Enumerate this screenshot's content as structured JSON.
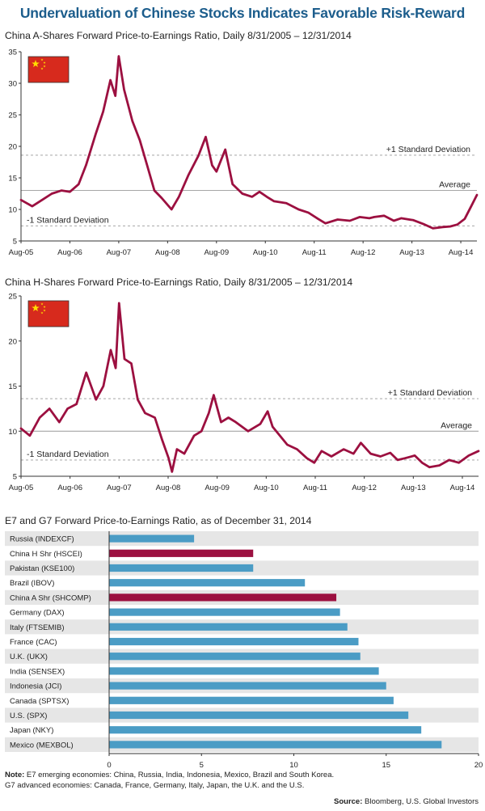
{
  "header": {
    "title": "Undervaluation of Chinese Stocks Indicates Favorable Risk-Reward"
  },
  "chart_data": [
    {
      "type": "line",
      "title": "China A-Shares Forward Price-to-Earnings Ratio, Daily 8/31/2005 – 12/31/2014",
      "xlabel": "",
      "ylabel": "",
      "ylim": [
        5,
        35
      ],
      "yticks": [
        "5",
        "10",
        "15",
        "20",
        "25",
        "30",
        "35"
      ],
      "xticks": [
        "Aug-05",
        "Aug-06",
        "Aug-07",
        "Aug-08",
        "Aug-09",
        "Aug-10",
        "Aug-11",
        "Aug-12",
        "Aug-13",
        "Aug-14"
      ],
      "x": [
        2005.67,
        2005.9,
        2006.1,
        2006.3,
        2006.5,
        2006.67,
        2006.85,
        2007.0,
        2007.2,
        2007.35,
        2007.5,
        2007.6,
        2007.67,
        2007.78,
        2007.95,
        2008.1,
        2008.25,
        2008.4,
        2008.55,
        2008.75,
        2008.9,
        2009.1,
        2009.3,
        2009.45,
        2009.58,
        2009.67,
        2009.85,
        2010.0,
        2010.2,
        2010.4,
        2010.55,
        2010.7,
        2010.85,
        2011.1,
        2011.35,
        2011.55,
        2011.75,
        2011.9,
        2012.15,
        2012.4,
        2012.6,
        2012.8,
        2012.9,
        2013.1,
        2013.3,
        2013.45,
        2013.7,
        2013.9,
        2014.1,
        2014.3,
        2014.45,
        2014.6,
        2014.75,
        2014.87,
        2015.0
      ],
      "values": [
        11.5,
        10.5,
        11.5,
        12.5,
        13.0,
        12.8,
        14.0,
        17.0,
        22.0,
        25.5,
        30.5,
        28.0,
        34.3,
        29.0,
        24.0,
        21.0,
        17.0,
        13.0,
        11.8,
        10.0,
        12.0,
        15.5,
        18.5,
        21.5,
        17.0,
        16.0,
        19.5,
        14.0,
        12.5,
        12.0,
        12.8,
        12.0,
        11.3,
        11.0,
        10.0,
        9.5,
        8.5,
        7.8,
        8.4,
        8.2,
        8.8,
        8.6,
        8.8,
        9.0,
        8.2,
        8.6,
        8.3,
        7.7,
        7.0,
        7.2,
        7.3,
        7.6,
        8.5,
        10.3,
        12.3
      ],
      "average": {
        "label": "Average",
        "value": 13.0
      },
      "plus_sd": {
        "label": "+1 Standard Deviation",
        "value": 18.6
      },
      "minus_sd": {
        "label": "-1 Standard Deviation",
        "value": 7.4
      },
      "colors": {
        "line": "#9c1040",
        "reference": "#999999"
      },
      "flag_icon": "china-flag-icon"
    },
    {
      "type": "line",
      "title": "China H-Shares Forward Price-to-Earnings Ratio, Daily 8/31/2005 – 12/31/2014",
      "xlabel": "",
      "ylabel": "",
      "ylim": [
        5,
        25
      ],
      "yticks": [
        "5",
        "10",
        "15",
        "20",
        "25"
      ],
      "xticks": [
        "Aug-05",
        "Aug-06",
        "Aug-07",
        "Aug-08",
        "Aug-09",
        "Aug-10",
        "Aug-11",
        "Aug-12",
        "Aug-13",
        "Aug-14"
      ],
      "x": [
        2005.67,
        2005.85,
        2006.05,
        2006.25,
        2006.45,
        2006.62,
        2006.8,
        2007.0,
        2007.2,
        2007.35,
        2007.5,
        2007.6,
        2007.67,
        2007.78,
        2007.92,
        2008.05,
        2008.2,
        2008.4,
        2008.55,
        2008.68,
        2008.75,
        2008.85,
        2009.0,
        2009.2,
        2009.35,
        2009.5,
        2009.6,
        2009.75,
        2009.9,
        2010.05,
        2010.3,
        2010.55,
        2010.7,
        2010.8,
        2011.1,
        2011.3,
        2011.5,
        2011.65,
        2011.8,
        2012.0,
        2012.25,
        2012.45,
        2012.6,
        2012.8,
        2013.0,
        2013.2,
        2013.35,
        2013.5,
        2013.7,
        2013.85,
        2014.0,
        2014.2,
        2014.4,
        2014.6,
        2014.8,
        2015.0
      ],
      "values": [
        10.3,
        9.5,
        11.5,
        12.5,
        11.0,
        12.5,
        13.0,
        16.5,
        13.5,
        15.0,
        19.0,
        17.0,
        24.2,
        18.0,
        17.5,
        13.5,
        12.0,
        11.5,
        9.0,
        7.0,
        5.5,
        8.0,
        7.5,
        9.5,
        10.0,
        12.0,
        14.0,
        11.0,
        11.5,
        11.0,
        10.0,
        10.8,
        12.2,
        10.5,
        8.5,
        8.0,
        7.0,
        6.5,
        7.8,
        7.2,
        8.0,
        7.5,
        8.7,
        7.5,
        7.2,
        7.6,
        6.8,
        7.0,
        7.3,
        6.5,
        6.0,
        6.2,
        6.8,
        6.5,
        7.3,
        7.8
      ],
      "average": {
        "label": "Average",
        "value": 10.0
      },
      "plus_sd": {
        "label": "+1 Standard Deviation",
        "value": 13.6
      },
      "minus_sd": {
        "label": "-1 Standard Deviation",
        "value": 6.8
      },
      "colors": {
        "line": "#9c1040",
        "reference": "#999999"
      },
      "flag_icon": "china-flag-icon"
    },
    {
      "type": "bar",
      "orientation": "horizontal",
      "title": "E7 and G7 Forward Price-to-Earnings Ratio, as of December 31, 2014",
      "xlabel": "",
      "ylabel": "",
      "xlim": [
        0,
        20
      ],
      "xticks": [
        "0",
        "5",
        "10",
        "15",
        "20"
      ],
      "categories": [
        "Russia (INDEXCF)",
        "China H Shr (HSCEI)",
        "Pakistan (KSE100)",
        "Brazil (IBOV)",
        "China A Shr (SHCOMP)",
        "Germany (DAX)",
        "Italy (FTSEMIB)",
        "France (CAC)",
        "U.K. (UKX)",
        "India (SENSEX)",
        "Indonesia (JCI)",
        "Canada (SPTSX)",
        "U.S.  (SPX)",
        "Japan (NKY)",
        "Mexico (MEXBOL)"
      ],
      "values": [
        4.6,
        7.8,
        7.8,
        10.6,
        12.3,
        12.5,
        12.9,
        13.5,
        13.6,
        14.6,
        15.0,
        15.4,
        16.2,
        16.9,
        18.0
      ],
      "highlight": [
        false,
        true,
        false,
        false,
        true,
        false,
        false,
        false,
        false,
        false,
        false,
        false,
        false,
        false,
        false
      ],
      "colors": {
        "bar": "#4b9cc5",
        "highlight": "#9c1040",
        "stripe": "#e6e6e6"
      }
    }
  ],
  "notes": {
    "label": "Note:",
    "line1": " E7 emerging economies: China, Russia, India, Indonesia, Mexico, Brazil and South Korea.",
    "line2": "G7 advanced economies: Canada, France, Germany, Italy, Japan, the U.K. and the U.S."
  },
  "source": {
    "label": "Source:",
    "text": " Bloomberg, U.S. Global Investors"
  }
}
